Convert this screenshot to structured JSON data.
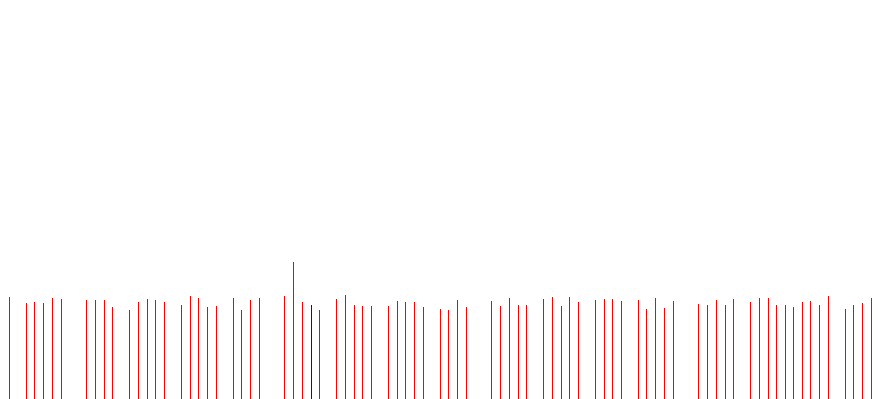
{
  "chart_data": {
    "type": "bar",
    "title": "",
    "xlabel": "",
    "ylabel": "",
    "axes_visible": false,
    "grid": false,
    "legend": "none",
    "ylim": [
      0,
      172
    ],
    "colors": {
      "default_bar": "#ff0000",
      "highlight_bar": "#0000ff",
      "background": "#ffffff"
    },
    "highlight_index": 35,
    "values": [
      128,
      116,
      120,
      122,
      120,
      126,
      125,
      122,
      118,
      124,
      124,
      124,
      115,
      130,
      112,
      122,
      125,
      124,
      122,
      124,
      118,
      129,
      127,
      115,
      117,
      115,
      127,
      112,
      124,
      126,
      128,
      128,
      129,
      172,
      122,
      118,
      111,
      117,
      125,
      130,
      118,
      116,
      116,
      117,
      116,
      123,
      122,
      121,
      115,
      130,
      113,
      112,
      124,
      115,
      119,
      121,
      123,
      116,
      127,
      118,
      118,
      124,
      125,
      128,
      117,
      128,
      121,
      114,
      124,
      125,
      125,
      123,
      124,
      124,
      113,
      126,
      114,
      123,
      124,
      122,
      119,
      118,
      124,
      118,
      125,
      113,
      122,
      126,
      126,
      118,
      118,
      115,
      122,
      123,
      118,
      129,
      121,
      113,
      118,
      120,
      126
    ]
  }
}
